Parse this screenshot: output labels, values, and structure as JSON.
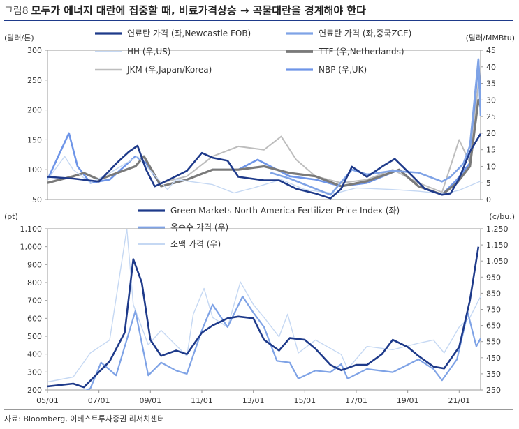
{
  "figure": {
    "number_label": "그림8",
    "title": "모두가 에너지 대란에 집중할 때, 비료가격상승 → 곡물대란을 경계해야 한다",
    "source": "자료: Bloomberg, 이베스트투자증권 리서치센터"
  },
  "colors": {
    "coal_newcastle": "#1e3a8a",
    "coal_zce": "#7fa3e6",
    "hh": "#c5d8f3",
    "ttf": "#7a7a7a",
    "jkm": "#bdbdbd",
    "nbp": "#6e95e8",
    "fertilizer": "#1e3a8a",
    "corn": "#7fa3e6",
    "wheat": "#c5d8f3"
  },
  "chart_data": [
    {
      "type": "line",
      "x_range": [
        "2005-01",
        "2021-11"
      ],
      "left_unit": "(달러/톤)",
      "right_unit": "(달러/MMBtu)",
      "left_ylim": [
        50,
        300
      ],
      "left_ticks": [
        "300",
        "250",
        "200",
        "150",
        "100",
        "50"
      ],
      "right_ylim": [
        0,
        45
      ],
      "right_ticks": [
        "45",
        "40",
        "35",
        "30",
        "25",
        "20",
        "15",
        "10",
        "5",
        "0"
      ],
      "legend": "top, two columns",
      "series": [
        {
          "name": "연료탄 가격 (좌,Newcastle FOB)",
          "key": "coal_newcastle",
          "axis": "left",
          "points": [
            [
              "2005-01",
              88
            ],
            [
              "2006-01",
              85
            ],
            [
              "2007-01",
              80
            ],
            [
              "2007-09",
              110
            ],
            [
              "2008-03",
              130
            ],
            [
              "2008-07",
              140
            ],
            [
              "2008-11",
              100
            ],
            [
              "2009-03",
              72
            ],
            [
              "2009-09",
              82
            ],
            [
              "2010-06",
              98
            ],
            [
              "2011-01",
              128
            ],
            [
              "2011-06",
              120
            ],
            [
              "2012-01",
              115
            ],
            [
              "2012-06",
              88
            ],
            [
              "2013-06",
              82
            ],
            [
              "2014-01",
              82
            ],
            [
              "2014-09",
              68
            ],
            [
              "2015-06",
              60
            ],
            [
              "2016-01",
              52
            ],
            [
              "2016-06",
              68
            ],
            [
              "2016-11",
              105
            ],
            [
              "2017-06",
              88
            ],
            [
              "2018-01",
              105
            ],
            [
              "2018-07",
              118
            ],
            [
              "2019-03",
              90
            ],
            [
              "2019-09",
              68
            ],
            [
              "2020-05",
              58
            ],
            [
              "2020-09",
              60
            ],
            [
              "2021-01",
              85
            ],
            [
              "2021-06",
              130
            ],
            [
              "2021-11",
              160
            ]
          ]
        },
        {
          "name": "연료탄 가격 (좌,중국ZCE)",
          "key": "coal_zce",
          "axis": "left",
          "points": [
            [
              "2013-09",
              95
            ],
            [
              "2014-06",
              85
            ],
            [
              "2015-06",
              68
            ],
            [
              "2016-01",
              58
            ],
            [
              "2016-11",
              100
            ],
            [
              "2017-06",
              92
            ],
            [
              "2018-06",
              98
            ],
            [
              "2019-06",
              95
            ],
            [
              "2020-05",
              80
            ],
            [
              "2020-09",
              88
            ],
            [
              "2021-03",
              110
            ],
            [
              "2021-06",
              140
            ],
            [
              "2021-10",
              285
            ],
            [
              "2021-11",
              190
            ]
          ]
        },
        {
          "name": "HH (우,US)",
          "key": "hh",
          "axis": "right",
          "points": [
            [
              "2005-01",
              6
            ],
            [
              "2005-09",
              13
            ],
            [
              "2006-01",
              9
            ],
            [
              "2006-09",
              5
            ],
            [
              "2007-06",
              8
            ],
            [
              "2008-07",
              13
            ],
            [
              "2009-09",
              3
            ],
            [
              "2010-01",
              6
            ],
            [
              "2011-06",
              4.5
            ],
            [
              "2012-04",
              2
            ],
            [
              "2013-01",
              3.5
            ],
            [
              "2014-02",
              6
            ],
            [
              "2015-01",
              3
            ],
            [
              "2016-03",
              1.8
            ],
            [
              "2017-01",
              3.5
            ],
            [
              "2018-06",
              3
            ],
            [
              "2019-06",
              2.5
            ],
            [
              "2020-06",
              1.7
            ],
            [
              "2021-01",
              2.8
            ],
            [
              "2021-11",
              5.5
            ]
          ]
        },
        {
          "name": "TTF (우,Netherlands)",
          "key": "ttf",
          "axis": "right",
          "points": [
            [
              "2005-01",
              5
            ],
            [
              "2006-01",
              7
            ],
            [
              "2006-06",
              8
            ],
            [
              "2007-01",
              6
            ],
            [
              "2008-06",
              10
            ],
            [
              "2008-10",
              13
            ],
            [
              "2009-06",
              4
            ],
            [
              "2010-06",
              6
            ],
            [
              "2011-06",
              9
            ],
            [
              "2012-06",
              9
            ],
            [
              "2013-06",
              10
            ],
            [
              "2014-06",
              8
            ],
            [
              "2015-06",
              7
            ],
            [
              "2016-06",
              4
            ],
            [
              "2017-06",
              5.5
            ],
            [
              "2018-09",
              9
            ],
            [
              "2019-06",
              4
            ],
            [
              "2020-05",
              1.5
            ],
            [
              "2020-12",
              5
            ],
            [
              "2021-06",
              10
            ],
            [
              "2021-10",
              30
            ],
            [
              "2021-11",
              28
            ]
          ]
        },
        {
          "name": "JKM (우,Japan/Korea)",
          "key": "jkm",
          "axis": "right",
          "points": [
            [
              "2009-06",
              5
            ],
            [
              "2010-06",
              7
            ],
            [
              "2011-06",
              13
            ],
            [
              "2012-06",
              16
            ],
            [
              "2013-06",
              15
            ],
            [
              "2014-02",
              19
            ],
            [
              "2014-09",
              12
            ],
            [
              "2015-06",
              7
            ],
            [
              "2016-06",
              5
            ],
            [
              "2017-06",
              6
            ],
            [
              "2018-06",
              9
            ],
            [
              "2019-06",
              5
            ],
            [
              "2020-05",
              2.2
            ],
            [
              "2021-01",
              18
            ],
            [
              "2021-06",
              11
            ],
            [
              "2021-10",
              35
            ],
            [
              "2021-11",
              32
            ]
          ]
        },
        {
          "name": "NBP (우,UK)",
          "key": "nbp",
          "axis": "right",
          "points": [
            [
              "2005-01",
              6
            ],
            [
              "2005-11",
              20
            ],
            [
              "2006-03",
              10
            ],
            [
              "2006-09",
              5
            ],
            [
              "2007-06",
              6
            ],
            [
              "2008-06",
              13
            ],
            [
              "2008-11",
              11
            ],
            [
              "2009-06",
              4
            ],
            [
              "2010-06",
              6
            ],
            [
              "2011-06",
              9
            ],
            [
              "2012-06",
              9
            ],
            [
              "2013-03",
              12
            ],
            [
              "2014-06",
              7
            ],
            [
              "2015-06",
              6
            ],
            [
              "2016-06",
              4
            ],
            [
              "2017-06",
              5
            ],
            [
              "2018-09",
              9
            ],
            [
              "2019-06",
              4
            ],
            [
              "2020-05",
              1.5
            ],
            [
              "2020-12",
              6
            ],
            [
              "2021-06",
              11
            ],
            [
              "2021-10",
              42
            ],
            [
              "2021-11",
              30
            ]
          ]
        }
      ]
    },
    {
      "type": "line",
      "x_range": [
        "2005-01",
        "2021-11"
      ],
      "left_unit": "(pt)",
      "right_unit": "(¢/bu.)",
      "left_ylim": [
        200,
        1100
      ],
      "left_ticks": [
        "1,100",
        "1,000",
        "900",
        "800",
        "700",
        "600",
        "500",
        "400",
        "300",
        "200"
      ],
      "right_ylim": [
        250,
        1250
      ],
      "right_ticks": [
        "1,250",
        "1,150",
        "1,050",
        "950",
        "850",
        "750",
        "650",
        "550",
        "450",
        "350",
        "250"
      ],
      "x_ticks": [
        "05/01",
        "07/01",
        "09/01",
        "11/01",
        "13/01",
        "15/01",
        "17/01",
        "19/01",
        "21/01"
      ],
      "legend": "top",
      "series": [
        {
          "name": "Green Markets North America Fertilizer Price Index (좌)",
          "key": "fertilizer",
          "axis": "left",
          "points": [
            [
              "2005-01",
              220
            ],
            [
              "2006-01",
              235
            ],
            [
              "2006-06",
              215
            ],
            [
              "2007-01",
              300
            ],
            [
              "2007-06",
              360
            ],
            [
              "2008-01",
              520
            ],
            [
              "2008-05",
              930
            ],
            [
              "2008-09",
              800
            ],
            [
              "2009-01",
              480
            ],
            [
              "2009-06",
              390
            ],
            [
              "2010-01",
              420
            ],
            [
              "2010-06",
              400
            ],
            [
              "2011-01",
              520
            ],
            [
              "2011-06",
              560
            ],
            [
              "2012-01",
              600
            ],
            [
              "2012-06",
              610
            ],
            [
              "2013-01",
              600
            ],
            [
              "2013-06",
              480
            ],
            [
              "2014-01",
              420
            ],
            [
              "2014-06",
              490
            ],
            [
              "2015-01",
              480
            ],
            [
              "2015-06",
              430
            ],
            [
              "2016-01",
              340
            ],
            [
              "2016-06",
              310
            ],
            [
              "2017-01",
              340
            ],
            [
              "2017-06",
              340
            ],
            [
              "2018-01",
              400
            ],
            [
              "2018-06",
              480
            ],
            [
              "2019-01",
              440
            ],
            [
              "2019-06",
              390
            ],
            [
              "2020-01",
              330
            ],
            [
              "2020-06",
              320
            ],
            [
              "2021-01",
              440
            ],
            [
              "2021-06",
              700
            ],
            [
              "2021-10",
              1000
            ]
          ]
        },
        {
          "name": "옥수수 가격 (우)",
          "key": "corn",
          "axis": "right",
          "points": [
            [
              "2005-01",
              210
            ],
            [
              "2006-01",
              210
            ],
            [
              "2006-09",
              260
            ],
            [
              "2007-02",
              420
            ],
            [
              "2007-09",
              340
            ],
            [
              "2008-06",
              740
            ],
            [
              "2008-12",
              340
            ],
            [
              "2009-06",
              420
            ],
            [
              "2010-01",
              370
            ],
            [
              "2010-06",
              350
            ],
            [
              "2011-01",
              620
            ],
            [
              "2011-06",
              780
            ],
            [
              "2012-01",
              640
            ],
            [
              "2012-08",
              830
            ],
            [
              "2013-01",
              730
            ],
            [
              "2013-06",
              640
            ],
            [
              "2013-12",
              430
            ],
            [
              "2014-06",
              420
            ],
            [
              "2014-10",
              320
            ],
            [
              "2015-06",
              370
            ],
            [
              "2016-01",
              360
            ],
            [
              "2016-06",
              410
            ],
            [
              "2016-09",
              320
            ],
            [
              "2017-06",
              380
            ],
            [
              "2018-06",
              360
            ],
            [
              "2019-06",
              440
            ],
            [
              "2020-01",
              380
            ],
            [
              "2020-05",
              310
            ],
            [
              "2020-12",
              440
            ],
            [
              "2021-05",
              730
            ],
            [
              "2021-09",
              520
            ],
            [
              "2021-11",
              570
            ]
          ]
        },
        {
          "name": "소맥 가격 (우)",
          "key": "wheat",
          "axis": "right",
          "points": [
            [
              "2005-01",
              300
            ],
            [
              "2006-01",
              330
            ],
            [
              "2006-09",
              480
            ],
            [
              "2007-06",
              560
            ],
            [
              "2008-02",
              1250
            ],
            [
              "2008-05",
              780
            ],
            [
              "2008-12",
              530
            ],
            [
              "2009-06",
              620
            ],
            [
              "2010-06",
              460
            ],
            [
              "2010-09",
              720
            ],
            [
              "2011-02",
              880
            ],
            [
              "2011-06",
              700
            ],
            [
              "2012-01",
              640
            ],
            [
              "2012-07",
              920
            ],
            [
              "2013-01",
              780
            ],
            [
              "2013-06",
              700
            ],
            [
              "2014-01",
              580
            ],
            [
              "2014-05",
              720
            ],
            [
              "2014-10",
              480
            ],
            [
              "2015-06",
              560
            ],
            [
              "2016-06",
              470
            ],
            [
              "2016-09",
              380
            ],
            [
              "2017-06",
              520
            ],
            [
              "2018-06",
              500
            ],
            [
              "2019-06",
              540
            ],
            [
              "2020-01",
              560
            ],
            [
              "2020-06",
              480
            ],
            [
              "2021-01",
              640
            ],
            [
              "2021-06",
              700
            ],
            [
              "2021-11",
              830
            ]
          ]
        }
      ]
    }
  ]
}
